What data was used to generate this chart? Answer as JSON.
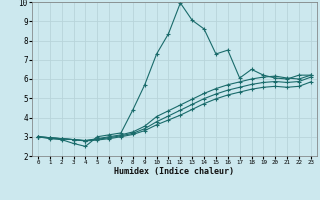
{
  "title": "",
  "xlabel": "Humidex (Indice chaleur)",
  "bg_color": "#cce8ee",
  "grid_color": "#b8d4da",
  "line_color": "#1a6b6b",
  "xlim": [
    -0.5,
    23.5
  ],
  "ylim": [
    2,
    10
  ],
  "yticks": [
    2,
    3,
    4,
    5,
    6,
    7,
    8,
    9,
    10
  ],
  "xticks": [
    0,
    1,
    2,
    3,
    4,
    5,
    6,
    7,
    8,
    9,
    10,
    11,
    12,
    13,
    14,
    15,
    16,
    17,
    18,
    19,
    20,
    21,
    22,
    23
  ],
  "series": [
    {
      "x": [
        0,
        1,
        2,
        3,
        4,
        5,
        6,
        7,
        8,
        9,
        10,
        11,
        12,
        13,
        14,
        15,
        16,
        17,
        18,
        19,
        20,
        21,
        22,
        23
      ],
      "y": [
        3.0,
        2.9,
        2.85,
        2.65,
        2.5,
        3.0,
        3.1,
        3.2,
        4.4,
        5.7,
        7.3,
        8.35,
        9.95,
        9.05,
        8.6,
        7.3,
        7.5,
        6.05,
        6.5,
        6.2,
        6.05,
        6.0,
        6.2,
        6.2
      ]
    },
    {
      "x": [
        0,
        1,
        2,
        3,
        4,
        5,
        6,
        7,
        8,
        9,
        10,
        11,
        12,
        13,
        14,
        15,
        16,
        17,
        18,
        19,
        20,
        21,
        22,
        23
      ],
      "y": [
        3.0,
        2.95,
        2.9,
        2.85,
        2.8,
        2.9,
        3.0,
        3.1,
        3.25,
        3.55,
        4.05,
        4.35,
        4.65,
        4.95,
        5.25,
        5.5,
        5.7,
        5.85,
        6.0,
        6.1,
        6.15,
        6.05,
        6.0,
        6.2
      ]
    },
    {
      "x": [
        0,
        1,
        2,
        3,
        4,
        5,
        6,
        7,
        8,
        9,
        10,
        11,
        12,
        13,
        14,
        15,
        16,
        17,
        18,
        19,
        20,
        21,
        22,
        23
      ],
      "y": [
        3.0,
        2.95,
        2.9,
        2.85,
        2.8,
        2.87,
        2.95,
        3.05,
        3.18,
        3.42,
        3.78,
        4.08,
        4.38,
        4.68,
        4.98,
        5.22,
        5.42,
        5.57,
        5.72,
        5.82,
        5.87,
        5.82,
        5.87,
        6.1
      ]
    },
    {
      "x": [
        0,
        1,
        2,
        3,
        4,
        5,
        6,
        7,
        8,
        9,
        10,
        11,
        12,
        13,
        14,
        15,
        16,
        17,
        18,
        19,
        20,
        21,
        22,
        23
      ],
      "y": [
        3.0,
        2.95,
        2.9,
        2.85,
        2.78,
        2.83,
        2.9,
        3.0,
        3.12,
        3.32,
        3.62,
        3.87,
        4.12,
        4.42,
        4.72,
        4.97,
        5.17,
        5.32,
        5.47,
        5.57,
        5.62,
        5.57,
        5.62,
        5.85
      ]
    }
  ]
}
